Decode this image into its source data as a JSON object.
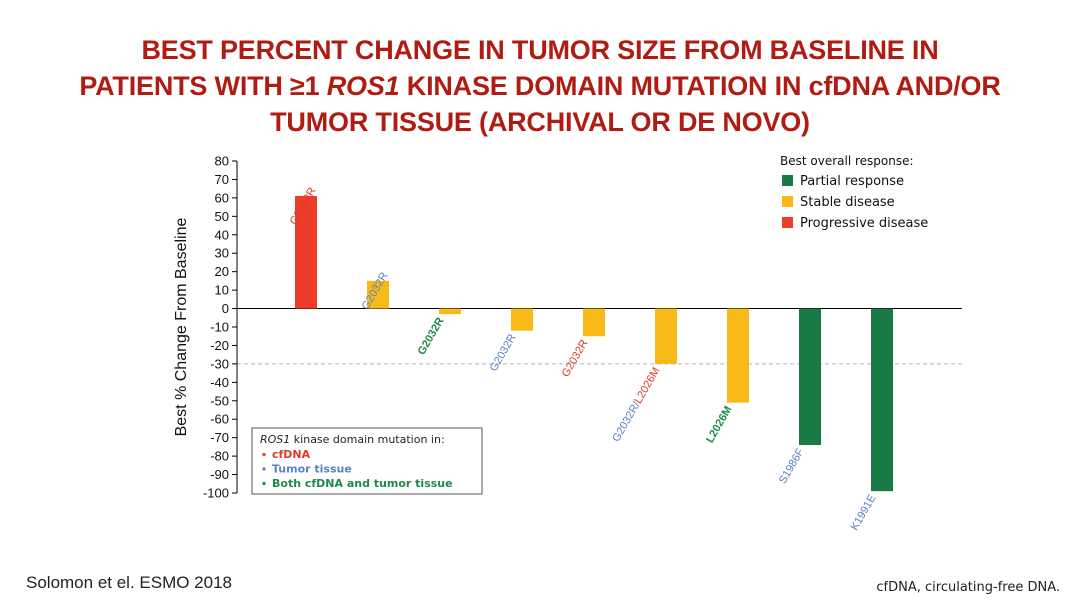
{
  "title": {
    "line1": "BEST PERCENT CHANGE IN TUMOR SIZE FROM BASELINE IN",
    "line2_a": "PATIENTS WITH ≥1 ",
    "line2_italic": "ROS1",
    "line2_b": " KINASE DOMAIN MUTATION IN cfDNA AND/OR",
    "line3": "TUMOR TISSUE (ARCHIVAL OR DE NOVO)"
  },
  "citation": "Solomon et el. ESMO 2018",
  "footnote": "cfDNA, circulating-free DNA.",
  "colors": {
    "title": "#b01c12",
    "partial_response": "#1a7a45",
    "stable_disease": "#f7b917",
    "progressive_disease": "#ec3c2a",
    "label_cfdna": "#e03a2a",
    "label_tumor_tissue": "#5a82c0",
    "label_both": "#1e8a4a"
  },
  "chart_data": {
    "type": "bar",
    "ylabel": "Best % Change From Baseline",
    "ylim": [
      -100,
      80
    ],
    "yticks": [
      80,
      70,
      60,
      50,
      40,
      30,
      20,
      10,
      0,
      -10,
      -20,
      -30,
      -40,
      -50,
      -60,
      -70,
      -80,
      -90,
      -100
    ],
    "reference_line": -30,
    "grid": false,
    "bars": [
      {
        "label": "G2032R",
        "value": 61,
        "response": "progressive_disease",
        "source": "cfdna"
      },
      {
        "label": "G2032R",
        "value": 15,
        "response": "stable_disease",
        "source": "tumor_tissue"
      },
      {
        "label": "G2032R",
        "value": -3,
        "response": "stable_disease",
        "source": "both"
      },
      {
        "label": "G2032R",
        "value": -12,
        "response": "stable_disease",
        "source": "tumor_tissue"
      },
      {
        "label": "G2032R",
        "value": -15,
        "response": "stable_disease",
        "source": "cfdna"
      },
      {
        "label_parts": [
          {
            "text": "G2032R",
            "source": "tumor_tissue"
          },
          {
            "text": "/",
            "source": "tumor_tissue"
          },
          {
            "text": "L2026M",
            "source": "cfdna"
          }
        ],
        "value": -30,
        "response": "stable_disease"
      },
      {
        "label": "L2026M",
        "value": -51,
        "response": "stable_disease",
        "source": "both"
      },
      {
        "label": "S1986F",
        "value": -74,
        "response": "partial_response",
        "source": "tumor_tissue"
      },
      {
        "label": "K1991E",
        "value": -99,
        "response": "partial_response",
        "source": "tumor_tissue"
      }
    ],
    "legend": {
      "title": "Best overall response:",
      "placement": "top-right",
      "items": [
        {
          "key": "partial_response",
          "label": "Partial response"
        },
        {
          "key": "stable_disease",
          "label": "Stable disease"
        },
        {
          "key": "progressive_disease",
          "label": "Progressive disease"
        }
      ]
    },
    "source_legend": {
      "title_italic": "ROS1",
      "title_rest": " kinase domain mutation in:",
      "placement": "bottom-left",
      "items": [
        {
          "key": "cfdna",
          "label": "cfDNA"
        },
        {
          "key": "tumor_tissue",
          "label": "Tumor tissue"
        },
        {
          "key": "both",
          "label": "Both cfDNA and tumor tissue"
        }
      ]
    }
  }
}
